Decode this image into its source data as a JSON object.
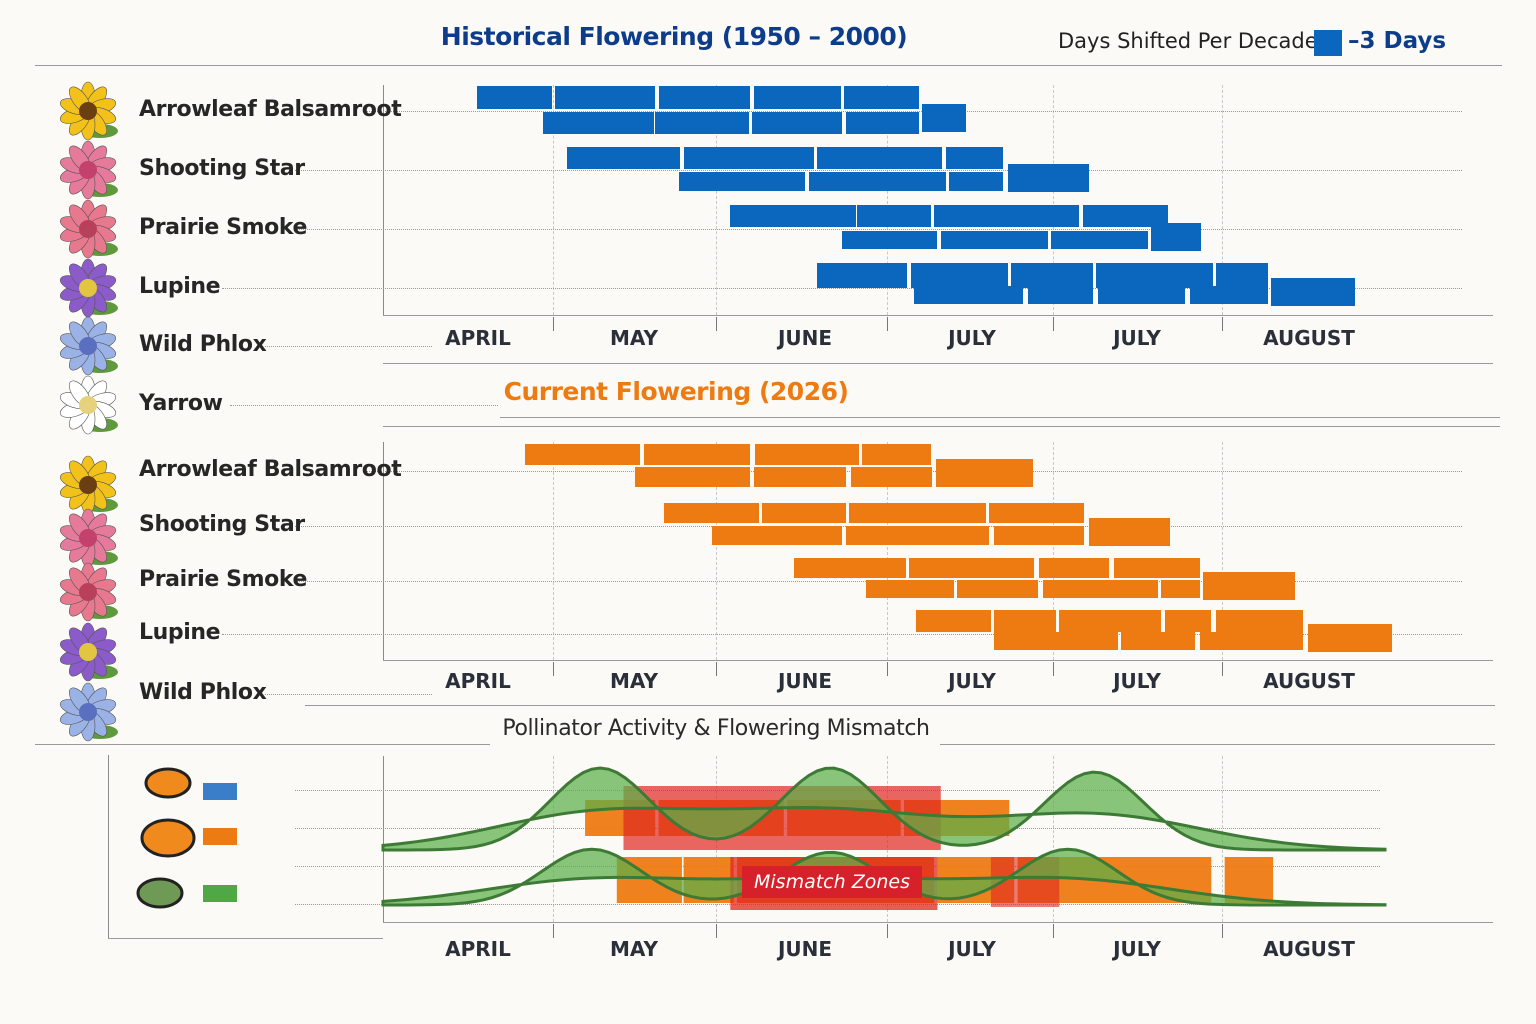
{
  "header": {
    "title": "Historical Flowering (1950 – 2000)",
    "legend_label": "Days Shifted Per Decade:",
    "legend_value": "–3 Days",
    "legend_color": "#0b66bd"
  },
  "current": {
    "title": "Current Flowering (2026)",
    "color": "#ee7a12"
  },
  "pollinator": {
    "title": "Pollinator Activity & Flowering Mismatch",
    "mismatch_label": "Mismatch Zones",
    "legend": [
      {
        "icon": "bee-icon",
        "color": "#3a7dc8"
      },
      {
        "icon": "butterfly-icon",
        "color": "#ee7a12"
      },
      {
        "icon": "hummingbird-icon",
        "color": "#4fa845"
      }
    ]
  },
  "axis_months": [
    "APRIL",
    "MAY",
    "JUNE",
    "JULY",
    "JULY",
    "AUGUST"
  ],
  "species_top": [
    "Arrowleaf Balsamroot",
    "Shooting Star",
    "Prairie Smoke",
    "Lupine",
    "Wild Phlox",
    "Yarrow"
  ],
  "species_mid": [
    "Arrowleaf Balsamroot",
    "Shooting Star",
    "Prairie Smoke",
    "Lupine",
    "Wild Phlox"
  ],
  "chart_data": [
    {
      "type": "bar",
      "title": "Historical Flowering (1950 – 2000)",
      "categories": [
        "APRIL",
        "MAY",
        "JUNE",
        "JULY",
        "JULY",
        "AUGUST"
      ],
      "color": "#0b66bd",
      "rows": [
        [
          [
            0.56,
            1.01
          ],
          [
            1.03,
            1.63
          ],
          [
            1.65,
            2.2
          ],
          [
            2.22,
            2.74
          ],
          [
            2.76,
            3.21
          ]
        ],
        [
          [
            0.96,
            1.62
          ],
          [
            1.63,
            2.19
          ],
          [
            2.21,
            2.75
          ],
          [
            2.77,
            3.21
          ],
          [
            3.23,
            3.49
          ]
        ],
        [
          [
            1.1,
            1.78
          ],
          [
            1.8,
            2.58
          ],
          [
            2.6,
            3.35
          ],
          [
            3.37,
            3.71
          ]
        ],
        [
          [
            1.77,
            2.53
          ],
          [
            2.55,
            3.37
          ],
          [
            3.39,
            3.71
          ],
          [
            3.74,
            4.23
          ]
        ],
        [
          [
            2.08,
            2.83
          ],
          [
            2.84,
            3.28
          ],
          [
            3.3,
            4.17
          ],
          [
            4.19,
            4.7
          ]
        ],
        [
          [
            2.75,
            3.32
          ],
          [
            3.34,
            3.98
          ],
          [
            4.0,
            4.58
          ],
          [
            4.6,
            4.9
          ]
        ],
        [
          [
            2.6,
            3.14
          ],
          [
            3.16,
            3.74
          ],
          [
            3.76,
            4.25
          ],
          [
            4.27,
            4.97
          ],
          [
            4.99,
            5.3
          ]
        ],
        [
          [
            3.18,
            3.83
          ],
          [
            3.86,
            4.25
          ],
          [
            4.28,
            4.8
          ],
          [
            4.83,
            5.3
          ],
          [
            5.32,
            5.82
          ]
        ]
      ]
    },
    {
      "type": "bar",
      "title": "Current Flowering (2026)",
      "categories": [
        "APRIL",
        "MAY",
        "JUNE",
        "JULY",
        "JULY",
        "AUGUST"
      ],
      "color": "#ee7a12",
      "rows": [
        [
          [
            0.85,
            1.54
          ],
          [
            1.56,
            2.2
          ],
          [
            2.23,
            2.85
          ],
          [
            2.87,
            3.28
          ]
        ],
        [
          [
            1.51,
            2.2
          ],
          [
            2.22,
            2.77
          ],
          [
            2.8,
            3.29
          ],
          [
            3.31,
            3.89
          ]
        ],
        [
          [
            1.68,
            2.25
          ],
          [
            2.27,
            2.77
          ],
          [
            2.79,
            3.61
          ],
          [
            3.63,
            4.2
          ]
        ],
        [
          [
            1.97,
            2.75
          ],
          [
            2.77,
            3.63
          ],
          [
            3.66,
            4.2
          ],
          [
            4.23,
            4.71
          ]
        ],
        [
          [
            2.46,
            3.13
          ],
          [
            3.15,
            3.9
          ],
          [
            3.93,
            4.35
          ],
          [
            4.38,
            4.89
          ]
        ],
        [
          [
            2.89,
            3.42
          ],
          [
            3.44,
            3.92
          ],
          [
            3.95,
            4.64
          ],
          [
            4.66,
            4.89
          ],
          [
            4.91,
            5.46
          ]
        ],
        [
          [
            3.19,
            3.64
          ],
          [
            3.66,
            4.03
          ],
          [
            4.05,
            4.66
          ],
          [
            4.68,
            4.96
          ],
          [
            4.99,
            5.51
          ]
        ],
        [
          [
            3.66,
            4.4
          ],
          [
            4.42,
            4.86
          ],
          [
            4.89,
            5.51
          ],
          [
            5.54,
            6.04
          ]
        ]
      ]
    },
    {
      "type": "area",
      "title": "Pollinator Activity & Flowering Mismatch",
      "categories": [
        "APRIL",
        "MAY",
        "JUNE",
        "JULY",
        "JULY",
        "AUGUST"
      ],
      "activity_color": "#5cb04a",
      "activity_series": [
        {
          "peaks_month": [
            1.3,
            2.68,
            4.26
          ],
          "relative_height": [
            1.0,
            1.0,
            0.95
          ]
        },
        {
          "peaks_month": [
            1.25,
            2.68,
            4.1
          ],
          "relative_height": [
            0.9,
            0.85,
            0.9
          ]
        }
      ],
      "flowering_rows": [
        {
          "color": "#ee7a12",
          "segments": [
            [
              1.21,
              1.63
            ],
            [
              1.65,
              2.4
            ],
            [
              2.42,
              3.1
            ],
            [
              3.12,
              3.75
            ]
          ]
        },
        {
          "color": "#ee7a12",
          "segments": [
            [
              1.4,
              1.79
            ],
            [
              1.8,
              2.1
            ],
            [
              2.12,
              3.3
            ],
            [
              3.32,
              3.78
            ],
            [
              3.8,
              4.96
            ],
            [
              5.04,
              5.33
            ]
          ]
        }
      ],
      "mismatch_zones": [
        [
          1.44,
          3.94
        ],
        [
          2.08,
          3.32
        ],
        [
          3.64,
          4.05
        ]
      ],
      "mismatch_color": "#e0271f"
    }
  ]
}
